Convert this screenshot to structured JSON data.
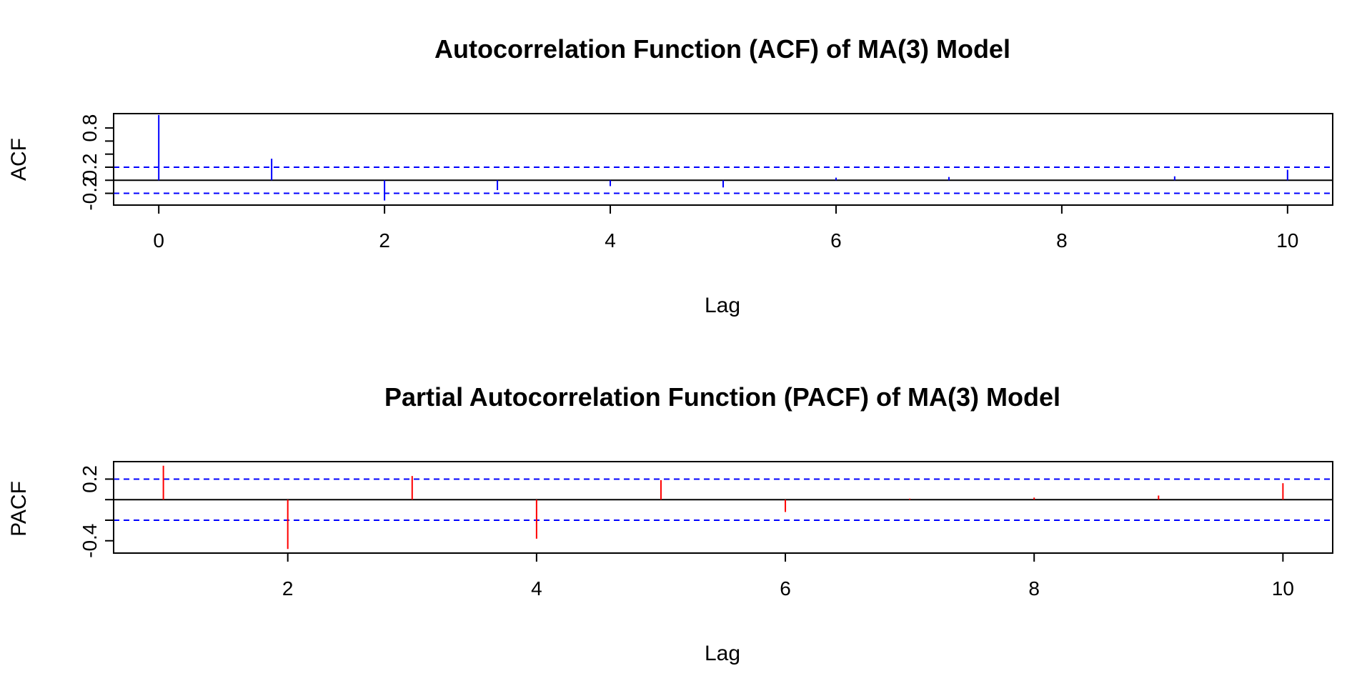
{
  "chart_data": [
    {
      "type": "bar",
      "title": "Autocorrelation Function (ACF) of MA(3) Model",
      "xlabel": "Lag",
      "ylabel": "ACF",
      "x_ticks": [
        0,
        2,
        4,
        6,
        8,
        10
      ],
      "y_ticks": [
        "-0.2",
        "0.2",
        "0.8"
      ],
      "y_tick_values": [
        -0.2,
        0,
        0.2,
        0.4,
        0.6,
        0.8
      ],
      "xlim": [
        -0.4,
        10.4
      ],
      "ylim": [
        -0.38,
        1.02
      ],
      "confidence_band": [
        0.2,
        -0.2
      ],
      "lags": [
        0,
        1,
        2,
        3,
        4,
        5,
        6,
        7,
        8,
        9,
        10
      ],
      "values": [
        1.0,
        0.33,
        -0.31,
        -0.15,
        -0.09,
        -0.11,
        0.04,
        0.05,
        0.0,
        0.06,
        0.16
      ],
      "bar_color": "#0000ff",
      "ci_color": "#0000ff"
    },
    {
      "type": "bar",
      "title": "Partial Autocorrelation Function (PACF) of MA(3) Model",
      "xlabel": "Lag",
      "ylabel": "PACF",
      "x_ticks": [
        2,
        4,
        6,
        8,
        10
      ],
      "y_ticks": [
        "-0.4",
        "0.2"
      ],
      "y_tick_values": [
        -0.4,
        -0.2,
        0,
        0.2
      ],
      "xlim": [
        0.6,
        10.4
      ],
      "ylim": [
        -0.52,
        0.37
      ],
      "confidence_band": [
        0.2,
        -0.2
      ],
      "lags": [
        1,
        2,
        3,
        4,
        5,
        6,
        7,
        8,
        9,
        10
      ],
      "values": [
        0.33,
        -0.48,
        0.23,
        -0.38,
        0.19,
        -0.12,
        0.01,
        0.02,
        0.04,
        0.16
      ],
      "bar_color": "#ff0000",
      "ci_color": "#0000ff"
    }
  ]
}
